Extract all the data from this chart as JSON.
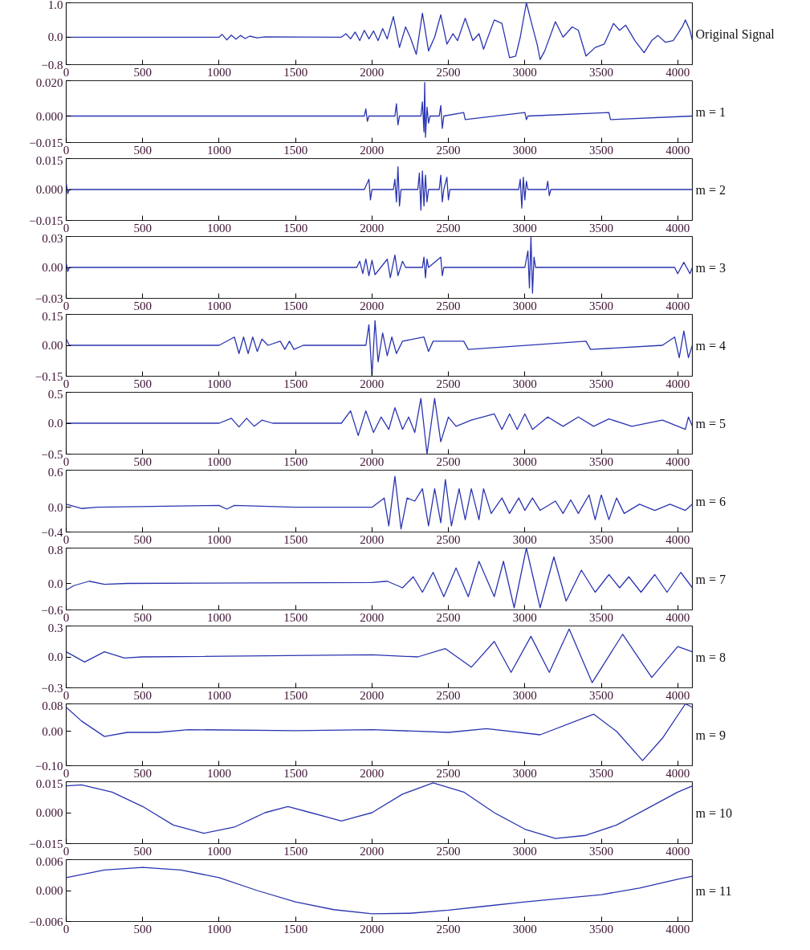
{
  "chart_data": [
    {
      "type": "line",
      "color": "#2b35b0",
      "annotations": [
        "Original Signal"
      ],
      "xlim": [
        0,
        4096
      ],
      "xticks": [
        0,
        500,
        1000,
        1500,
        2000,
        2500,
        3000,
        3500,
        4000
      ],
      "ylim": [
        -0.8,
        1.0
      ],
      "yticks": [
        {
          "value": -0.8,
          "label": "−0.8"
        },
        {
          "value": 0,
          "label": "0.0"
        },
        {
          "value": 1.0,
          "label": "1.0"
        }
      ],
      "x": [
        0,
        1000,
        1020,
        1050,
        1080,
        1110,
        1140,
        1170,
        1200,
        1250,
        1300,
        1800,
        1830,
        1860,
        1890,
        1920,
        1950,
        1980,
        2010,
        2040,
        2070,
        2100,
        2140,
        2180,
        2220,
        2250,
        2290,
        2330,
        2370,
        2410,
        2450,
        2490,
        2530,
        2560,
        2610,
        2660,
        2700,
        2730,
        2800,
        2850,
        2900,
        2940,
        2970,
        3010,
        3050,
        3080,
        3100,
        3130,
        3200,
        3250,
        3310,
        3350,
        3400,
        3460,
        3520,
        3580,
        3620,
        3660,
        3720,
        3780,
        3830,
        3870,
        3920,
        3970,
        4030,
        4050,
        4080,
        4096
      ],
      "values": [
        0,
        0,
        0.08,
        -0.08,
        0.06,
        -0.06,
        0.05,
        -0.04,
        0.03,
        -0.02,
        0.01,
        0,
        0.1,
        -0.05,
        0.15,
        -0.1,
        0.2,
        -0.05,
        0.18,
        -0.1,
        0.25,
        -0.05,
        0.6,
        -0.3,
        0.3,
        0,
        -0.5,
        0.7,
        -0.4,
        0,
        0.65,
        -0.2,
        0.1,
        -0.1,
        0.55,
        -0.1,
        0.1,
        -0.35,
        0.5,
        0.4,
        -0.6,
        -0.55,
        0,
        1.0,
        0.3,
        -0.2,
        -0.65,
        -0.4,
        0.45,
        0,
        0.3,
        0.2,
        -0.55,
        -0.3,
        -0.2,
        0.4,
        0.2,
        0.35,
        -0.1,
        -0.45,
        -0.1,
        0.05,
        -0.15,
        -0.1,
        0.3,
        0.5,
        0.2,
        -0.1
      ]
    },
    {
      "type": "line",
      "color": "#2b35b0",
      "annotations": [
        "m = 1"
      ],
      "xlim": [
        0,
        4096
      ],
      "xticks": [
        0,
        500,
        1000,
        1500,
        2000,
        2500,
        3000,
        3500,
        4000
      ],
      "ylim": [
        -0.015,
        0.02
      ],
      "yticks": [
        {
          "value": -0.015,
          "label": "−0.015"
        },
        {
          "value": 0,
          "label": "0.000"
        },
        {
          "value": 0.02,
          "label": "0.020"
        }
      ],
      "x": [
        0,
        1800,
        1950,
        1960,
        1970,
        1980,
        2150,
        2160,
        2170,
        2180,
        2320,
        2330,
        2340,
        2345,
        2350,
        2360,
        2370,
        2380,
        2440,
        2450,
        2460,
        2470,
        2600,
        2610,
        3000,
        3010,
        3020,
        3550,
        3560,
        4096
      ],
      "values": [
        0,
        0,
        0,
        0.004,
        -0.003,
        0,
        0,
        0.007,
        -0.005,
        0,
        0,
        0.008,
        -0.009,
        0.019,
        -0.012,
        0.005,
        -0.004,
        0,
        0,
        0.006,
        -0.007,
        0,
        0.002,
        -0.002,
        0.002,
        -0.002,
        0,
        0.002,
        -0.002,
        0
      ]
    },
    {
      "type": "line",
      "color": "#2b35b0",
      "annotations": [
        "m = 2"
      ],
      "xlim": [
        0,
        4096
      ],
      "xticks": [
        0,
        500,
        1000,
        1500,
        2000,
        2500,
        3000,
        3500,
        4000
      ],
      "ylim": [
        -0.015,
        0.015
      ],
      "yticks": [
        {
          "value": -0.015,
          "label": "−0.015"
        },
        {
          "value": 0,
          "label": "0.000"
        },
        {
          "value": 0.015,
          "label": "0.015"
        }
      ],
      "x": [
        0,
        10,
        20,
        1950,
        1980,
        1990,
        2000,
        2140,
        2150,
        2160,
        2170,
        2180,
        2190,
        2300,
        2310,
        2320,
        2330,
        2340,
        2350,
        2360,
        2370,
        2440,
        2450,
        2460,
        2470,
        2490,
        2500,
        2510,
        2960,
        2970,
        2980,
        2990,
        3000,
        3010,
        3020,
        3140,
        3150,
        3160,
        3170,
        4096
      ],
      "values": [
        0.003,
        -0.002,
        0,
        0,
        0.005,
        -0.005,
        0,
        0,
        0.005,
        -0.006,
        0.011,
        -0.008,
        0,
        0,
        0.008,
        -0.01,
        0.009,
        -0.008,
        0.007,
        -0.006,
        0,
        0,
        0.007,
        -0.006,
        0,
        0.006,
        -0.005,
        0,
        0,
        0.005,
        -0.009,
        0.006,
        -0.005,
        0.004,
        0,
        0,
        0.004,
        -0.003,
        0,
        0
      ]
    },
    {
      "type": "line",
      "color": "#2b35b0",
      "annotations": [
        "m = 3"
      ],
      "xlim": [
        0,
        4096
      ],
      "xticks": [
        0,
        500,
        1000,
        1500,
        2000,
        2500,
        3000,
        3500,
        4000
      ],
      "ylim": [
        -0.03,
        0.03
      ],
      "yticks": [
        {
          "value": -0.03,
          "label": "−0.03"
        },
        {
          "value": 0,
          "label": "0.00"
        },
        {
          "value": 0.03,
          "label": "0.03"
        }
      ],
      "x": [
        0,
        10,
        20,
        1900,
        1920,
        1940,
        1960,
        1980,
        2000,
        2020,
        2100,
        2120,
        2150,
        2170,
        2200,
        2220,
        2330,
        2340,
        2350,
        2360,
        2370,
        2450,
        2460,
        2470,
        3000,
        3020,
        3030,
        3040,
        3050,
        3060,
        3070,
        3980,
        4000,
        4040,
        4080,
        4096
      ],
      "values": [
        0.004,
        -0.004,
        0,
        0,
        0.006,
        -0.006,
        0.008,
        -0.008,
        0.007,
        -0.007,
        0.008,
        -0.01,
        0.012,
        -0.008,
        0.006,
        0,
        0,
        0.01,
        -0.01,
        0.008,
        0,
        0.01,
        -0.008,
        0,
        0,
        0.016,
        -0.02,
        0.03,
        -0.025,
        0.01,
        0,
        0,
        -0.006,
        0.005,
        -0.006,
        0
      ]
    },
    {
      "type": "line",
      "color": "#2b35b0",
      "annotations": [
        "m = 4"
      ],
      "xlim": [
        0,
        4096
      ],
      "xticks": [
        0,
        500,
        1000,
        1500,
        2000,
        2500,
        3000,
        3500,
        4000
      ],
      "ylim": [
        -0.15,
        0.15
      ],
      "yticks": [
        {
          "value": -0.15,
          "label": "−0.15"
        },
        {
          "value": 0,
          "label": "0.00"
        },
        {
          "value": 0.15,
          "label": "0.15"
        }
      ],
      "x": [
        0,
        20,
        1000,
        1100,
        1130,
        1160,
        1190,
        1220,
        1250,
        1280,
        1320,
        1400,
        1430,
        1460,
        1490,
        1550,
        1960,
        1980,
        2000,
        2020,
        2040,
        2070,
        2100,
        2130,
        2160,
        2200,
        2340,
        2370,
        2400,
        2600,
        2630,
        3400,
        3430,
        3900,
        3980,
        4010,
        4040,
        4070,
        4096
      ],
      "values": [
        0.03,
        0,
        0,
        0.04,
        -0.04,
        0.04,
        -0.04,
        0.04,
        -0.03,
        0.03,
        0,
        0.02,
        -0.02,
        0.02,
        -0.02,
        0,
        0,
        0.1,
        -0.15,
        0.12,
        -0.08,
        0.06,
        -0.05,
        0.04,
        -0.04,
        0.02,
        0.04,
        -0.03,
        0.02,
        0.02,
        -0.02,
        0.02,
        -0.02,
        0,
        0.04,
        -0.06,
        0.07,
        -0.06,
        0
      ]
    },
    {
      "type": "line",
      "color": "#2b35b0",
      "annotations": [
        "m = 5"
      ],
      "xlim": [
        0,
        4096
      ],
      "xticks": [
        0,
        500,
        1000,
        1500,
        2000,
        2500,
        3000,
        3500,
        4000
      ],
      "ylim": [
        -0.5,
        0.5
      ],
      "yticks": [
        {
          "value": -0.5,
          "label": "−0.5"
        },
        {
          "value": 0,
          "label": "0.0"
        },
        {
          "value": 0.5,
          "label": "0.5"
        }
      ],
      "x": [
        0,
        1000,
        1080,
        1130,
        1180,
        1230,
        1280,
        1350,
        1800,
        1860,
        1910,
        1960,
        2010,
        2060,
        2110,
        2150,
        2200,
        2240,
        2280,
        2320,
        2360,
        2410,
        2450,
        2500,
        2550,
        2650,
        2800,
        2850,
        2900,
        2950,
        3000,
        3050,
        3150,
        3250,
        3350,
        3450,
        3550,
        3700,
        3900,
        4050,
        4070,
        4096
      ],
      "values": [
        0,
        0,
        0.08,
        -0.06,
        0.08,
        -0.05,
        0.05,
        0,
        0,
        0.2,
        -0.2,
        0.2,
        -0.15,
        0.1,
        -0.1,
        0.25,
        -0.1,
        0.1,
        -0.15,
        0.4,
        -0.5,
        0.4,
        -0.3,
        0.1,
        -0.05,
        0.05,
        0.15,
        -0.1,
        0.15,
        -0.1,
        0.15,
        -0.1,
        0.1,
        -0.05,
        0.1,
        -0.05,
        0.07,
        -0.05,
        0.05,
        -0.1,
        0.1,
        -0.05
      ]
    },
    {
      "type": "line",
      "color": "#2b35b0",
      "annotations": [
        "m = 6"
      ],
      "xlim": [
        0,
        4096
      ],
      "xticks": [
        0,
        500,
        1000,
        1500,
        2000,
        2500,
        3000,
        3500,
        4000
      ],
      "ylim": [
        -0.4,
        0.6
      ],
      "yticks": [
        {
          "value": -0.4,
          "label": "−0.4"
        },
        {
          "value": 0,
          "label": "0.0"
        },
        {
          "value": 0.6,
          "label": "0.6"
        }
      ],
      "x": [
        0,
        100,
        200,
        1000,
        1050,
        1100,
        1500,
        2000,
        2080,
        2110,
        2150,
        2190,
        2230,
        2280,
        2330,
        2370,
        2410,
        2450,
        2480,
        2520,
        2570,
        2610,
        2650,
        2700,
        2730,
        2780,
        2850,
        2900,
        2960,
        3000,
        3050,
        3100,
        3200,
        3250,
        3300,
        3350,
        3420,
        3460,
        3500,
        3550,
        3600,
        3650,
        3750,
        3850,
        3950,
        4050,
        4096
      ],
      "values": [
        0.05,
        -0.02,
        0,
        0.03,
        -0.03,
        0.03,
        0,
        0,
        0.15,
        -0.3,
        0.5,
        -0.35,
        0.15,
        0.1,
        0.3,
        -0.3,
        0.3,
        -0.25,
        0.45,
        -0.3,
        0.3,
        -0.2,
        0.3,
        -0.2,
        0.3,
        -0.1,
        0.15,
        -0.1,
        0.15,
        -0.05,
        0.15,
        -0.05,
        0.1,
        -0.1,
        0.12,
        -0.1,
        0.2,
        -0.2,
        0.2,
        -0.2,
        0.15,
        -0.1,
        0.05,
        -0.05,
        0.05,
        -0.05,
        0.05
      ]
    },
    {
      "type": "line",
      "color": "#2b35b0",
      "annotations": [
        "m = 7"
      ],
      "xlim": [
        0,
        4096
      ],
      "xticks": [
        0,
        500,
        1000,
        1500,
        2000,
        2500,
        3000,
        3500,
        4000
      ],
      "ylim": [
        -0.6,
        0.8
      ],
      "yticks": [
        {
          "value": -0.6,
          "label": "−0.6"
        },
        {
          "value": 0,
          "label": "0.0"
        },
        {
          "value": 0.8,
          "label": "0.8"
        }
      ],
      "x": [
        0,
        50,
        150,
        250,
        400,
        2000,
        2100,
        2200,
        2270,
        2330,
        2400,
        2470,
        2550,
        2630,
        2700,
        2800,
        2860,
        2930,
        3010,
        3100,
        3190,
        3270,
        3370,
        3460,
        3550,
        3620,
        3680,
        3760,
        3850,
        3930,
        4020,
        4096
      ],
      "values": [
        -0.15,
        -0.05,
        0.05,
        -0.02,
        0,
        0.02,
        0.05,
        -0.1,
        0.15,
        -0.2,
        0.25,
        -0.3,
        0.35,
        -0.3,
        0.5,
        -0.3,
        0.5,
        -0.55,
        0.8,
        -0.55,
        0.6,
        -0.4,
        0.3,
        -0.2,
        0.2,
        -0.1,
        0.15,
        -0.2,
        0.2,
        -0.2,
        0.25,
        -0.1
      ]
    },
    {
      "type": "line",
      "color": "#2b35b0",
      "annotations": [
        "m = 8"
      ],
      "xlim": [
        0,
        4096
      ],
      "xticks": [
        0,
        500,
        1000,
        1500,
        2000,
        2500,
        3000,
        3500,
        4000
      ],
      "ylim": [
        -0.3,
        0.3
      ],
      "yticks": [
        {
          "value": -0.3,
          "label": "−0.3"
        },
        {
          "value": 0,
          "label": "0.0"
        },
        {
          "value": 0.3,
          "label": "0.3"
        }
      ],
      "x": [
        0,
        120,
        250,
        380,
        500,
        2000,
        2300,
        2480,
        2650,
        2800,
        2910,
        3040,
        3160,
        3290,
        3440,
        3640,
        3830,
        4000,
        4096
      ],
      "values": [
        0.05,
        -0.05,
        0.05,
        -0.01,
        0,
        0.02,
        0,
        0.08,
        -0.1,
        0.15,
        -0.15,
        0.2,
        -0.15,
        0.27,
        -0.25,
        0.22,
        -0.2,
        0.1,
        0.05
      ]
    },
    {
      "type": "line",
      "color": "#2b35b0",
      "annotations": [
        "m = 9"
      ],
      "xlim": [
        0,
        4096
      ],
      "xticks": [
        0,
        500,
        1000,
        1500,
        2000,
        2500,
        3000,
        3500,
        4000
      ],
      "ylim": [
        -0.1,
        0.08
      ],
      "yticks": [
        {
          "value": -0.1,
          "label": "−0.10"
        },
        {
          "value": 0,
          "label": "0.00"
        },
        {
          "value": 0.08,
          "label": "0.08"
        }
      ],
      "x": [
        0,
        100,
        250,
        400,
        600,
        800,
        1500,
        2000,
        2500,
        2750,
        3100,
        3450,
        3600,
        3770,
        3900,
        4050,
        4096
      ],
      "values": [
        0.07,
        0.03,
        -0.015,
        -0.003,
        -0.003,
        0.005,
        0.002,
        0.005,
        -0.003,
        0.008,
        -0.01,
        0.05,
        0,
        -0.085,
        -0.02,
        0.08,
        0.07
      ]
    },
    {
      "type": "line",
      "color": "#2b35b0",
      "annotations": [
        "m = 10"
      ],
      "xlim": [
        0,
        4096
      ],
      "xticks": [
        0,
        500,
        1000,
        1500,
        2000,
        2500,
        3000,
        3500,
        4000
      ],
      "ylim": [
        -0.015,
        0.015
      ],
      "yticks": [
        {
          "value": -0.015,
          "label": "−0.015"
        },
        {
          "value": 0,
          "label": "0.000"
        },
        {
          "value": 0.015,
          "label": "0.015"
        }
      ],
      "x": [
        0,
        100,
        300,
        500,
        700,
        900,
        1100,
        1300,
        1450,
        1600,
        1800,
        2000,
        2200,
        2400,
        2600,
        2800,
        3000,
        3200,
        3400,
        3600,
        3800,
        4000,
        4096
      ],
      "values": [
        0.013,
        0.0135,
        0.01,
        0.003,
        -0.006,
        -0.01,
        -0.007,
        0,
        0.003,
        0,
        -0.004,
        0,
        0.009,
        0.0145,
        0.01,
        0,
        -0.008,
        -0.0125,
        -0.011,
        -0.006,
        0.002,
        0.01,
        0.013
      ]
    },
    {
      "type": "line",
      "color": "#2b35b0",
      "annotations": [
        "m = 11"
      ],
      "xlim": [
        0,
        4096
      ],
      "xticks": [
        0,
        500,
        1000,
        1500,
        2000,
        2500,
        3000,
        3500,
        4000
      ],
      "ylim": [
        -0.006,
        0.006
      ],
      "yticks": [
        {
          "value": -0.006,
          "label": "−0.006"
        },
        {
          "value": 0,
          "label": "0.000"
        },
        {
          "value": 0.006,
          "label": "0.006"
        }
      ],
      "x": [
        0,
        250,
        500,
        750,
        1000,
        1250,
        1500,
        1750,
        2000,
        2250,
        2500,
        2750,
        3000,
        3250,
        3500,
        3750,
        4000,
        4096
      ],
      "values": [
        0.0025,
        0.004,
        0.0045,
        0.004,
        0.0025,
        0,
        -0.0022,
        -0.0037,
        -0.0045,
        -0.0044,
        -0.0038,
        -0.003,
        -0.0022,
        -0.0015,
        -0.0008,
        0.0005,
        0.0022,
        0.0028
      ]
    }
  ]
}
